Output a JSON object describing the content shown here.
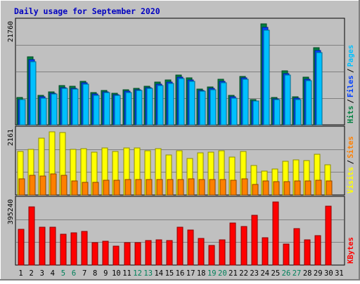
{
  "chart_data": [
    {
      "type": "bar",
      "title": "Daily usage for September 2020",
      "categories": [
        "1",
        "2",
        "3",
        "4",
        "5",
        "6",
        "7",
        "8",
        "9",
        "10",
        "11",
        "12",
        "13",
        "14",
        "15",
        "16",
        "17",
        "18",
        "19",
        "20",
        "21",
        "22",
        "23",
        "24",
        "25",
        "26",
        "27",
        "28",
        "29",
        "30",
        "31"
      ],
      "weekend_categories": [
        "5",
        "6",
        "12",
        "13",
        "19",
        "20",
        "26",
        "27"
      ],
      "max_label": "21760",
      "legend": [
        {
          "label": "Hits",
          "color": "#008040"
        },
        {
          "label": "Files",
          "color": "#0040ff"
        },
        {
          "label": "Pages",
          "color": "#00c0ff"
        }
      ],
      "series": [
        {
          "name": "Hits",
          "color": "#008040",
          "values": [
            5900,
            14600,
            6300,
            7100,
            8400,
            8300,
            9400,
            6900,
            7400,
            6800,
            7500,
            7900,
            8300,
            9200,
            9600,
            10800,
            10100,
            7700,
            8100,
            9800,
            6300,
            10500,
            5400,
            21760,
            5900,
            11600,
            6000,
            10200,
            16600,
            0,
            0
          ]
        },
        {
          "name": "Files",
          "color": "#0040ff",
          "values": [
            5500,
            14000,
            6000,
            6800,
            8000,
            7900,
            9000,
            6600,
            7100,
            6500,
            7200,
            7600,
            8000,
            8800,
            9200,
            10300,
            9700,
            7400,
            7800,
            9400,
            6000,
            10100,
            5200,
            21000,
            5600,
            11100,
            5700,
            9800,
            16000,
            0,
            0
          ]
        },
        {
          "name": "Pages",
          "color": "#00c0ff",
          "values": [
            5400,
            13600,
            5800,
            6600,
            7800,
            7700,
            8700,
            6400,
            6900,
            6300,
            7000,
            7400,
            7800,
            8500,
            8900,
            10000,
            9400,
            7200,
            7600,
            9100,
            5800,
            9800,
            5100,
            20400,
            5400,
            10800,
            5500,
            9500,
            15500,
            0,
            0
          ]
        }
      ]
    },
    {
      "type": "bar",
      "max_label": "2161",
      "legend": [
        {
          "label": "Visits",
          "color": "#ffff00"
        },
        {
          "label": "Sites",
          "color": "#ff8000"
        }
      ],
      "series": [
        {
          "name": "Visits",
          "color": "#ffff00",
          "values": [
            1500,
            1550,
            1950,
            2161,
            2130,
            1550,
            1580,
            1460,
            1620,
            1480,
            1620,
            1600,
            1520,
            1590,
            1370,
            1520,
            1250,
            1440,
            1460,
            1520,
            1300,
            1500,
            1000,
            820,
            900,
            1150,
            1200,
            1180,
            1400,
            1030,
            0
          ]
        },
        {
          "name": "Sites",
          "color": "#ff8000",
          "values": [
            560,
            680,
            650,
            720,
            680,
            480,
            440,
            440,
            510,
            500,
            520,
            530,
            540,
            520,
            540,
            540,
            550,
            520,
            530,
            540,
            510,
            550,
            360,
            470,
            460,
            460,
            480,
            480,
            500,
            480,
            0
          ]
        }
      ]
    },
    {
      "type": "bar",
      "max_label": "395240",
      "legend": [
        {
          "label": "KBytes",
          "color": "#ff0000"
        }
      ],
      "series": [
        {
          "name": "KBytes",
          "color": "#ff0000",
          "values": [
            225000,
            365000,
            235000,
            235000,
            195000,
            200000,
            210000,
            140000,
            150000,
            120000,
            140000,
            140000,
            155000,
            160000,
            155000,
            235000,
            220000,
            165000,
            125000,
            160000,
            265000,
            240000,
            310000,
            170000,
            395240,
            130000,
            230000,
            160000,
            185000,
            370000,
            0
          ]
        }
      ]
    }
  ]
}
